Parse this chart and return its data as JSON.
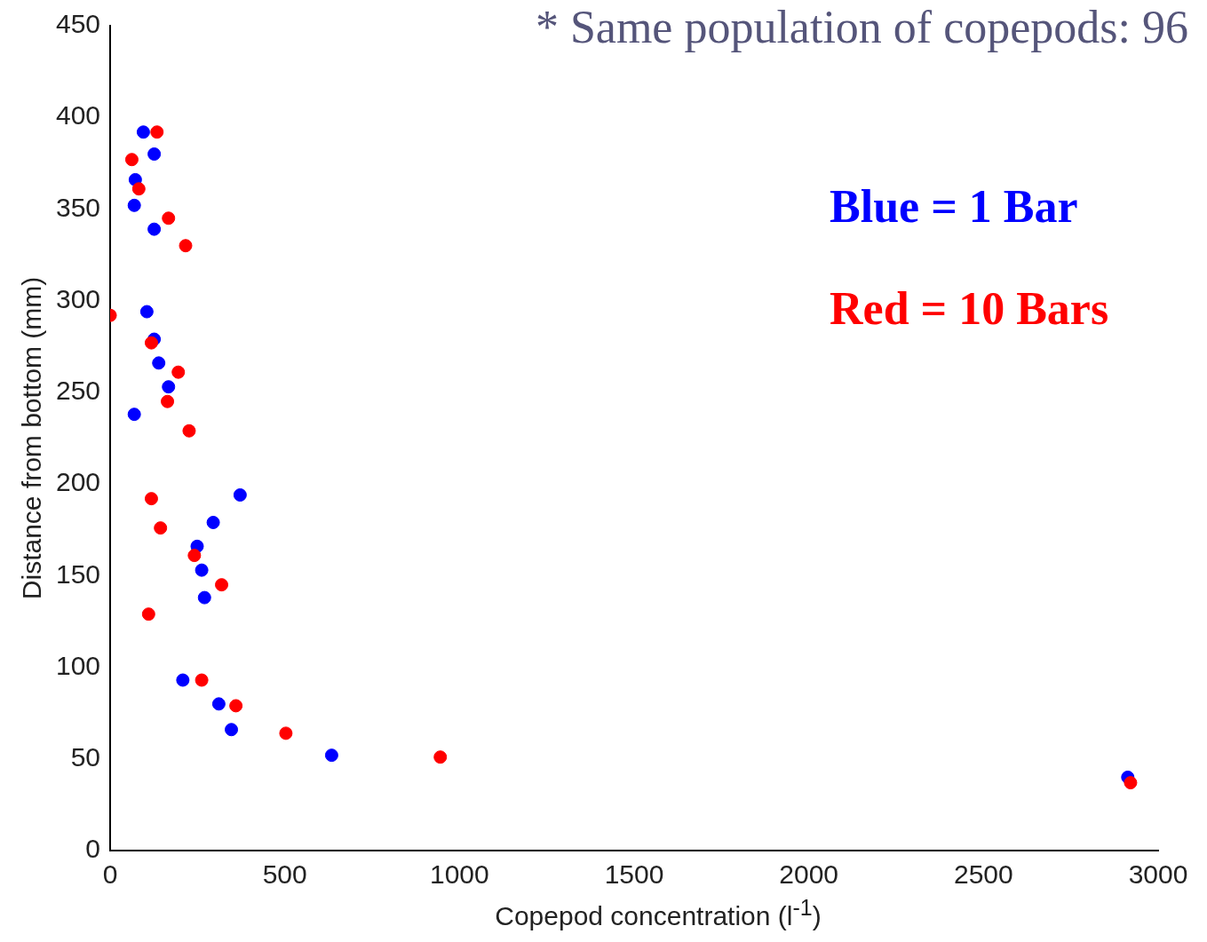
{
  "chart_data": {
    "type": "scatter",
    "xlabel": "Copepod concentration (l$^{-1}$)",
    "ylabel": "Distance from bottom (mm)",
    "annotations": [
      "* Same population of copepods: 96"
    ],
    "xlim": [
      0,
      3000
    ],
    "xticks": [
      0,
      500,
      1000,
      1500,
      2000,
      2500,
      3000
    ],
    "ylim": [
      0,
      450
    ],
    "yticks": [
      0,
      50,
      100,
      150,
      200,
      250,
      300,
      350,
      400,
      450
    ],
    "grid": false,
    "legend": "top right",
    "marker": "circle",
    "series": [
      {
        "name": "Blue = 1 Bar",
        "color": "#0000ff",
        "x": [
          95,
          126,
          72,
          69,
          126,
          105,
          126,
          139,
          167,
          69,
          372,
          295,
          249,
          262,
          270,
          208,
          311,
          347,
          634,
          2913
        ],
        "values": [
          392,
          380,
          366,
          352,
          339,
          294,
          279,
          266,
          253,
          238,
          194,
          179,
          166,
          153,
          138,
          93,
          80,
          66,
          52,
          40
        ]
      },
      {
        "name": "Red = 10 Bars",
        "color": "#ff0000",
        "x": [
          134,
          62,
          82,
          167,
          216,
          0,
          118,
          195,
          164,
          226,
          118,
          144,
          241,
          319,
          110,
          262,
          360,
          503,
          945,
          2921
        ],
        "values": [
          392,
          377,
          361,
          345,
          330,
          292,
          277,
          261,
          245,
          229,
          192,
          176,
          161,
          145,
          129,
          93,
          79,
          64,
          51,
          37
        ]
      }
    ]
  }
}
